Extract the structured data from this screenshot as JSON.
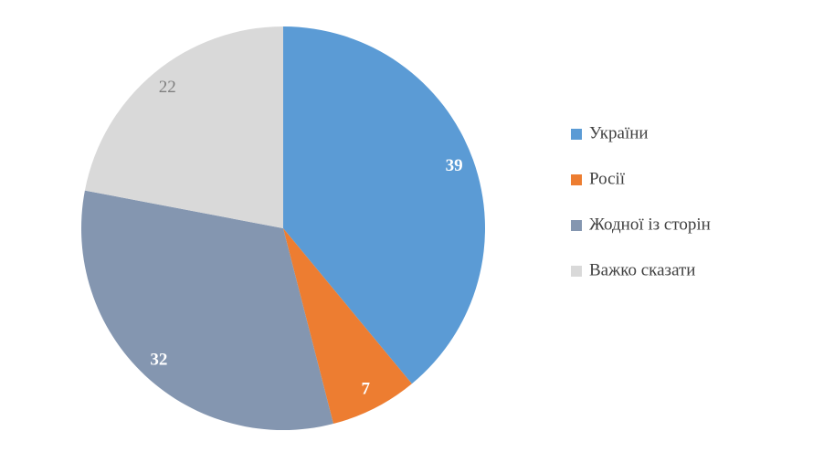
{
  "chart_data": {
    "type": "pie",
    "categories": [
      "України",
      "Росії",
      "Жодної із сторін",
      "Важко сказати"
    ],
    "values": [
      39,
      7,
      32,
      22
    ],
    "colors": [
      "#5b9bd5",
      "#ed7d31",
      "#8496b0",
      "#d9d9d9"
    ],
    "label_colors": [
      "#ffffff",
      "#ffffff",
      "#ffffff",
      "#7f7f7f"
    ],
    "legend": "right"
  }
}
